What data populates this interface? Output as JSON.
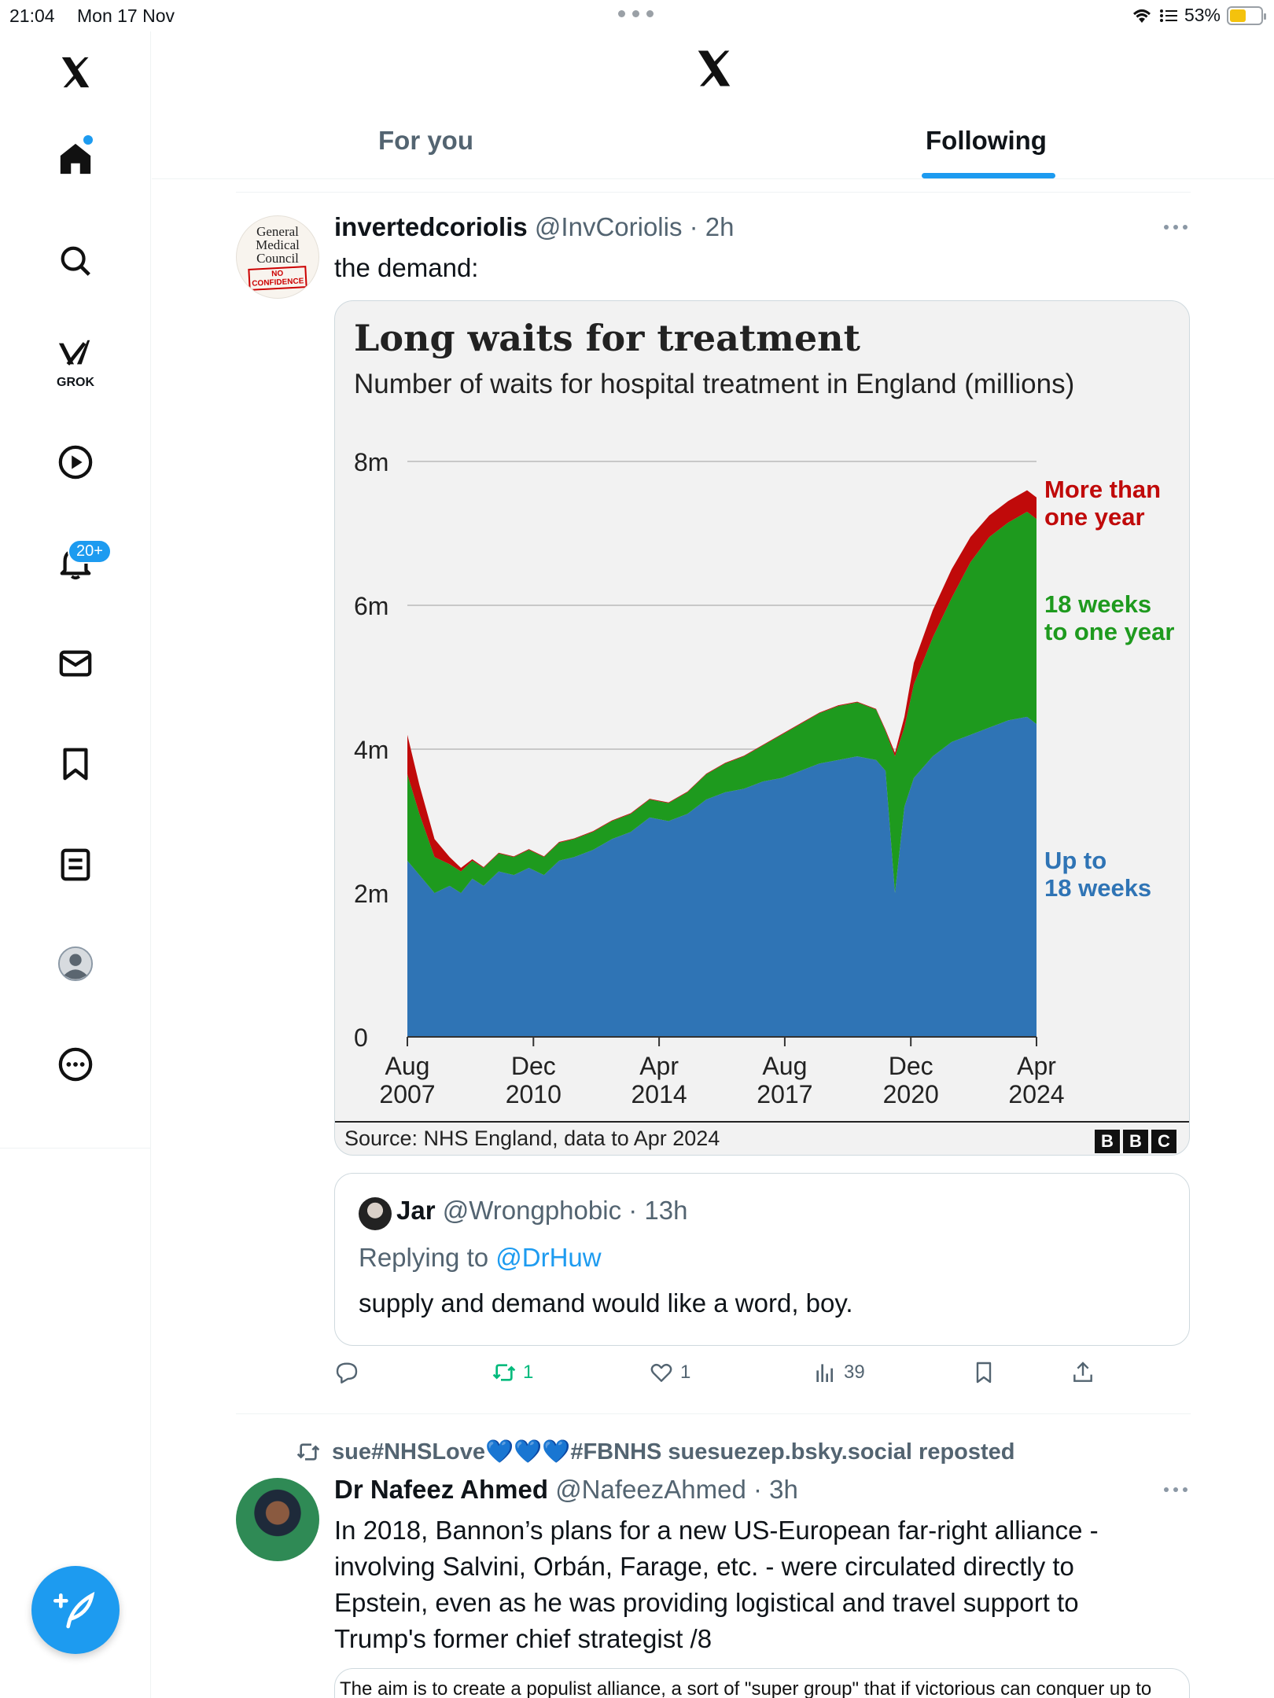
{
  "status_bar": {
    "time": "21:04",
    "date": "Mon 17 Nov",
    "battery": "53%",
    "battery_level": 0.53
  },
  "sidebar": {
    "grok_label": "GROK",
    "notifications_badge": "20+",
    "items": [
      "x-logo",
      "home-icon",
      "search-icon",
      "grok-icon",
      "video-icon",
      "bell-icon",
      "mail-icon",
      "bookmark-icon",
      "lists-icon",
      "profile-icon",
      "more-icon"
    ]
  },
  "header": {
    "tabs": [
      {
        "label": "For you",
        "active": false
      },
      {
        "label": "Following",
        "active": true
      }
    ]
  },
  "post1": {
    "avatar": {
      "line1": "General",
      "line2": "Medical",
      "line3": "Council",
      "stamp1": "NO",
      "stamp2": "CONFIDENCE"
    },
    "name": "invertedcoriolis",
    "handle": "@InvCoriolis",
    "time": "2h",
    "text": "the demand:",
    "chart": {
      "source": "Source: NHS England, data to Apr 2024",
      "bbc": [
        "B",
        "B",
        "C"
      ]
    },
    "quote": {
      "name": "Jar",
      "handle": "@Wrongphobic",
      "time": "13h",
      "replying_prefix": "Replying to ",
      "replying_handle": "@DrHuw",
      "text": "supply and demand would like a word, boy."
    },
    "actions": {
      "reposts": "1",
      "likes": "1",
      "views": "39"
    }
  },
  "post2": {
    "reposted_by": "sue#NHSLove💙💙💙#FBNHS suesuezep.bsky.social reposted",
    "name": "Dr Nafeez Ahmed",
    "handle": "@NafeezAhmed",
    "time": "3h",
    "text_lines": [
      "In 2018, Bannon’s plans for a new US-European far-right alliance -",
      "involving Salvini, Orbán, Farage, etc. - were circulated directly to",
      "Epstein, even as he was providing logistical and travel support to",
      "Trump's former chief strategist /8"
    ],
    "quote_preview": "The aim is to create a populist alliance, a sort of \"super group\" that if victorious can conquer up to"
  },
  "chart_data": {
    "type": "area",
    "title": "Long waits for treatment",
    "subtitle": "Number of waits for hospital treatment in England (millions)",
    "xlabel": "",
    "ylabel": "",
    "x_ticks": [
      {
        "year": 2007.58,
        "line1": "Aug",
        "line2": "2007"
      },
      {
        "year": 2010.92,
        "line1": "Dec",
        "line2": "2010"
      },
      {
        "year": 2014.25,
        "line1": "Apr",
        "line2": "2014"
      },
      {
        "year": 2017.58,
        "line1": "Aug",
        "line2": "2017"
      },
      {
        "year": 2020.92,
        "line1": "Dec",
        "line2": "2020"
      },
      {
        "year": 2024.25,
        "line1": "Apr",
        "line2": "2024"
      }
    ],
    "y_ticks": [
      {
        "value": 0,
        "label": "0"
      },
      {
        "value": 2,
        "label": "2m"
      },
      {
        "value": 4,
        "label": "4m"
      },
      {
        "value": 6,
        "label": "6m"
      },
      {
        "value": 8,
        "label": "8m"
      }
    ],
    "xlim": [
      2007.58,
      2024.25
    ],
    "ylim": [
      0,
      8
    ],
    "grid": true,
    "stacked": true,
    "x": [
      2007.58,
      2007.9,
      2008.3,
      2008.7,
      2009.0,
      2009.3,
      2009.6,
      2010.0,
      2010.4,
      2010.8,
      2011.2,
      2011.6,
      2012.0,
      2012.5,
      2013.0,
      2013.5,
      2014.0,
      2014.5,
      2015.0,
      2015.5,
      2016.0,
      2016.5,
      2017.0,
      2017.5,
      2018.0,
      2018.5,
      2019.0,
      2019.5,
      2020.0,
      2020.25,
      2020.5,
      2020.75,
      2021.0,
      2021.5,
      2022.0,
      2022.5,
      2023.0,
      2023.5,
      2024.0,
      2024.25
    ],
    "series": [
      {
        "name": "Up to 18 weeks",
        "label_lines": [
          "Up to",
          "18 weeks"
        ],
        "color": "#2f74b5",
        "values": [
          2.45,
          2.25,
          2.0,
          2.1,
          2.0,
          2.2,
          2.1,
          2.3,
          2.25,
          2.35,
          2.25,
          2.45,
          2.5,
          2.6,
          2.75,
          2.85,
          3.05,
          3.0,
          3.1,
          3.3,
          3.4,
          3.45,
          3.55,
          3.6,
          3.7,
          3.8,
          3.85,
          3.9,
          3.85,
          3.7,
          2.0,
          3.2,
          3.6,
          3.9,
          4.1,
          4.2,
          4.3,
          4.4,
          4.45,
          4.35
        ]
      },
      {
        "name": "18 weeks to one year",
        "label_lines": [
          "18 weeks",
          "to one year"
        ],
        "color": "#1e9a1e",
        "values": [
          1.2,
          0.85,
          0.5,
          0.3,
          0.3,
          0.25,
          0.25,
          0.25,
          0.25,
          0.25,
          0.25,
          0.25,
          0.25,
          0.25,
          0.25,
          0.25,
          0.25,
          0.25,
          0.3,
          0.35,
          0.4,
          0.45,
          0.5,
          0.6,
          0.65,
          0.7,
          0.75,
          0.75,
          0.7,
          0.55,
          1.9,
          1.1,
          1.3,
          1.65,
          2.0,
          2.4,
          2.65,
          2.75,
          2.85,
          2.85
        ]
      },
      {
        "name": "More than one year",
        "label_lines": [
          "More than",
          "one year"
        ],
        "color": "#c00a0a",
        "values": [
          0.55,
          0.4,
          0.25,
          0.1,
          0.05,
          0.02,
          0.01,
          0.01,
          0.01,
          0.01,
          0.01,
          0.01,
          0.01,
          0.01,
          0.01,
          0.01,
          0.01,
          0.01,
          0.01,
          0.01,
          0.01,
          0.01,
          0.01,
          0.01,
          0.01,
          0.01,
          0.01,
          0.01,
          0.01,
          0.02,
          0.05,
          0.15,
          0.3,
          0.38,
          0.4,
          0.35,
          0.3,
          0.3,
          0.3,
          0.3
        ]
      }
    ]
  }
}
